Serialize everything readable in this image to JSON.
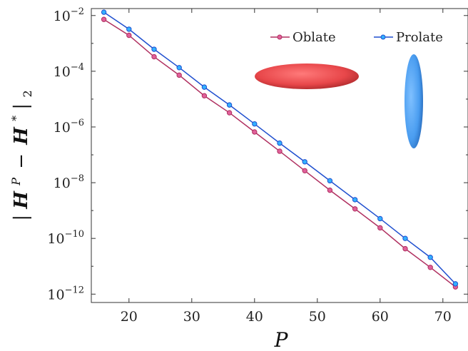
{
  "chart_data": {
    "type": "line",
    "title": "",
    "xlabel": "P",
    "ylabel": "|H^P − H^*|_2",
    "ylabel_parts": {
      "bar_open": "|",
      "H": "H",
      "P": "P",
      "minus": "−",
      "star": "*",
      "bar_close": "|",
      "sub": "2"
    },
    "xscale": "linear",
    "yscale": "log",
    "xlim": [
      14,
      74
    ],
    "ylim_exp": [
      -12.3,
      -1.75
    ],
    "x_ticks": [
      {
        "value": 20,
        "label": "20"
      },
      {
        "value": 30,
        "label": "30"
      },
      {
        "value": 40,
        "label": "40"
      },
      {
        "value": 50,
        "label": "50"
      },
      {
        "value": 60,
        "label": "60"
      },
      {
        "value": 70,
        "label": "70"
      }
    ],
    "y_ticks": [
      {
        "exp": -2,
        "base": "10",
        "sup": "−2"
      },
      {
        "exp": -4,
        "base": "10",
        "sup": "−4"
      },
      {
        "exp": -6,
        "base": "10",
        "sup": "−6"
      },
      {
        "exp": -8,
        "base": "10",
        "sup": "−8"
      },
      {
        "exp": -10,
        "base": "10",
        "sup": "−10"
      },
      {
        "exp": -12,
        "base": "10",
        "sup": "−12"
      }
    ],
    "x": [
      16,
      20,
      24,
      28,
      32,
      36,
      40,
      44,
      48,
      52,
      56,
      60,
      64,
      68,
      72
    ],
    "series": [
      {
        "name": "Oblate",
        "color": "#b03060",
        "marker_fill": "#e0609a",
        "log10_values": [
          -2.14,
          -2.71,
          -3.48,
          -4.14,
          -4.88,
          -5.49,
          -6.18,
          -6.87,
          -7.57,
          -8.27,
          -8.94,
          -9.62,
          -10.37,
          -11.04,
          -11.74
        ]
      },
      {
        "name": "Prolate",
        "color": "#1f4fcf",
        "marker_fill": "#33b0ff",
        "log10_values": [
          -1.88,
          -2.49,
          -3.21,
          -3.87,
          -4.57,
          -5.21,
          -5.89,
          -6.58,
          -7.25,
          -7.93,
          -8.61,
          -9.29,
          -10.0,
          -10.68,
          -11.63
        ]
      }
    ],
    "grid": false,
    "legend_position": "top-right",
    "insets": [
      {
        "shape": "oblate-spheroid",
        "color": "#e8474a"
      },
      {
        "shape": "prolate-spheroid",
        "color": "#4a9df0"
      }
    ]
  }
}
